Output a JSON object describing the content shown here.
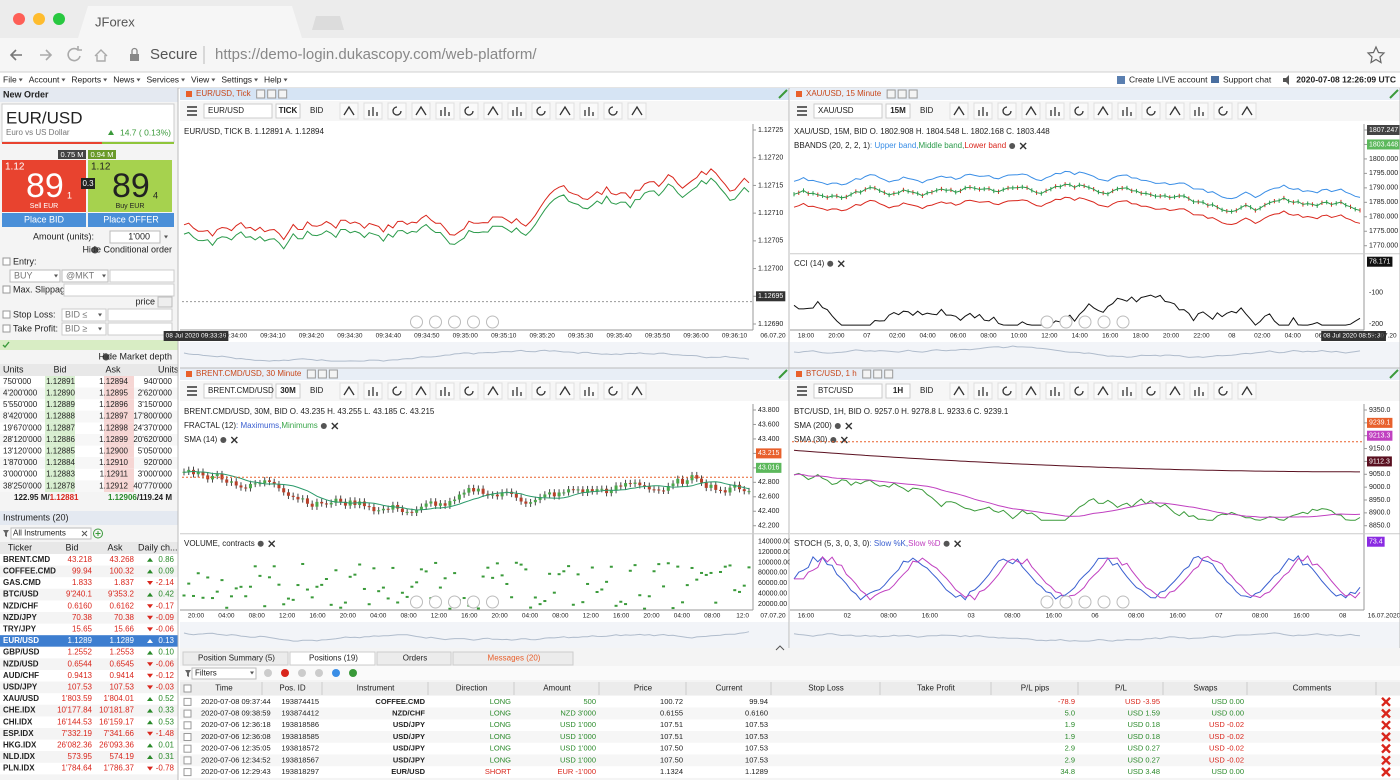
{
  "browser": {
    "tab": "JForex",
    "secure": "Secure",
    "url": "https://demo-login.dukascopy.com/web-platform/"
  },
  "menu": {
    "items": [
      "File",
      "Account",
      "Reports",
      "News",
      "Services",
      "View",
      "Settings",
      "Help"
    ],
    "live": "Create LIVE account",
    "support": "Support chat",
    "clock": "2020-07-08 12:26:09 UTC"
  },
  "order": {
    "title": "New Order",
    "symbol": "EUR/USD",
    "description": "Euro vs US Dollar",
    "change": "14.7 ( 0.13%)",
    "sell": {
      "volume": "0.75 M",
      "big": "1.12",
      "pips": "89",
      "fraction": "1",
      "label": "Sell EUR"
    },
    "buy": {
      "volume": "0.94 M",
      "big": "1.12",
      "pips": "89",
      "fraction": "4",
      "label": "Buy EUR"
    },
    "spread": "0.3",
    "place_bid": "Place BID",
    "place_offer": "Place OFFER",
    "amount_label": "Amount (units):",
    "amount": "1'000",
    "hide_conditional": "Hide Conditional order",
    "entry": "Entry:",
    "side": "BUY",
    "mode": "@MKT",
    "slippage": "Max. Slippage:",
    "price": "price",
    "stop_loss": "Stop Loss:",
    "stop_cond": "BID ≤",
    "take_profit": "Take Profit:",
    "take_cond": "BID ≥",
    "hide_depth": "Hide Market depth"
  },
  "depth": {
    "header": [
      "Units",
      "Bid",
      "Ask",
      "Units"
    ],
    "rows": [
      [
        "750'000",
        "1.12891",
        "1.12894",
        "940'000"
      ],
      [
        "4'200'000",
        "1.12890",
        "1.12895",
        "2'620'000"
      ],
      [
        "5'550'000",
        "1.12889",
        "1.12896",
        "3'150'000"
      ],
      [
        "8'420'000",
        "1.12888",
        "1.12897",
        "17'800'000"
      ],
      [
        "19'670'000",
        "1.12887",
        "1.12898",
        "24'370'000"
      ],
      [
        "28'120'000",
        "1.12886",
        "1.12899",
        "20'620'000"
      ],
      [
        "13'120'000",
        "1.12885",
        "1.12900",
        "5'050'000"
      ],
      [
        "1'870'000",
        "1.12884",
        "1.12910",
        "920'000"
      ],
      [
        "3'000'000",
        "1.12883",
        "1.12911",
        "3'000'000"
      ],
      [
        "38'250'000",
        "1.12878",
        "1.12912",
        "40'770'000"
      ]
    ],
    "footer": [
      "122.95 M/",
      "1.12881",
      "1.12906",
      "/119.24 M"
    ]
  },
  "instruments": {
    "title": "Instruments (20)",
    "filter": "All Instruments",
    "header": [
      "Ticker",
      "Bid",
      "Ask",
      "Daily ch..."
    ],
    "selected": "EUR/USD",
    "rows": [
      [
        "BRENT.CMD",
        "43.218",
        "43.268",
        "0.86"
      ],
      [
        "COFFEE.CMD",
        "99.94",
        "100.32",
        "0.09"
      ],
      [
        "GAS.CMD",
        "1.833",
        "1.837",
        "-2.14"
      ],
      [
        "BTC/USD",
        "9'240.1",
        "9'353.2",
        "0.42"
      ],
      [
        "NZD/CHF",
        "0.6160",
        "0.6162",
        "-0.17"
      ],
      [
        "NZD/JPY",
        "70.38",
        "70.38",
        "-0.09"
      ],
      [
        "TRY/JPY",
        "15.65",
        "15.66",
        "-0.06"
      ],
      [
        "EUR/USD",
        "1.1289",
        "1.1289",
        "0.13"
      ],
      [
        "GBP/USD",
        "1.2552",
        "1.2553",
        "0.10"
      ],
      [
        "NZD/USD",
        "0.6544",
        "0.6545",
        "-0.06"
      ],
      [
        "AUD/CHF",
        "0.9413",
        "0.9414",
        "-0.12"
      ],
      [
        "USD/JPY",
        "107.53",
        "107.53",
        "-0.03"
      ],
      [
        "XAU/USD",
        "1'803.59",
        "1'804.01",
        "0.52"
      ],
      [
        "CHE.IDX",
        "10'177.84",
        "10'181.87",
        "0.33"
      ],
      [
        "CHI.IDX",
        "16'144.53",
        "16'159.17",
        "0.53"
      ],
      [
        "ESP.IDX",
        "7'332.19",
        "7'341.66",
        "-1.48"
      ],
      [
        "HKG.IDX",
        "26'082.36",
        "26'093.36",
        "0.01"
      ],
      [
        "NLD.IDX",
        "573.95",
        "574.19",
        "0.31"
      ],
      [
        "PLN.IDX",
        "1'784.64",
        "1'786.37",
        "-0.78"
      ]
    ]
  },
  "charts": [
    {
      "title": "EUR/USD, Tick",
      "symbol": "EUR/USD",
      "period": "TICK",
      "side": "BID",
      "info": "EUR/USD, TICK   B. 1.12891 A. 1.12894",
      "prices": [
        "1.12725",
        "1.12720",
        "1.12715",
        "1.12710",
        "1.12705",
        "1.12700",
        {
          "text": "1.12695",
          "color": "#333333"
        },
        "1.12690"
      ],
      "times": [
        {
          "text": "08 Jul 2020 09:33:39",
          "color": "#333333"
        },
        "09:34:00",
        "09:34:10",
        "09:34:20",
        "09:34:30",
        "09:34:40",
        "09:34:50",
        "09:35:00",
        "09:35:10",
        "09:35:20",
        "09:35:30",
        "09:35:40",
        "09:35:50",
        "09:36:00",
        "09:36:10",
        "06.07.20"
      ]
    },
    {
      "title": "XAU/USD, 15 Minute",
      "symbol": "XAU/USD",
      "period": "15M",
      "side": "BID",
      "info": "XAU/USD, 15M, BID   O. 1802.908 H. 1804.548 L. 1802.168 C. 1803.448",
      "indicators": [
        {
          "name": "BBANDS (20, 2, 2, 1)",
          "legend": [
            {
              "text": " : Upper band,",
              "color": "#3a8ee6"
            },
            {
              "text": " Middle band,",
              "color": "#2a9a4a"
            },
            {
              "text": " Lower band",
              "color": "#d9261c"
            }
          ]
        }
      ],
      "prices": [
        {
          "text": "1807.247",
          "color": "#444444"
        },
        {
          "text": "1803.448",
          "color": "#5cb85c"
        },
        "1800.000",
        "1795.000",
        "1790.000",
        "1785.000",
        "1780.000",
        "1775.000",
        "1770.000"
      ],
      "lower": {
        "name": "CCI (14)",
        "labels": [
          {
            "text": "78.171",
            "color": "#111111"
          },
          "-100",
          "-200"
        ]
      },
      "times": [
        "18:00",
        "20:00",
        "07",
        "02:00",
        "04:00",
        "06:00",
        "08:00",
        "10:00",
        "12:00",
        "14:00",
        "16:00",
        "18:00",
        "20:00",
        "22:00",
        "08",
        "02:00",
        "04:00",
        "06:00",
        {
          "text": "08 Jul 2020 08:59:30",
          "color": "#333333"
        },
        "07.07.20"
      ]
    },
    {
      "title": "BRENT.CMD/USD, 30 Minute",
      "symbol": "BRENT.CMD/USD",
      "period": "30M",
      "side": "BID",
      "info": "BRENT.CMD/USD, 30M, BID   O. 43.235 H. 43.255 L. 43.185 C. 43.215",
      "indicators": [
        {
          "name": "FRACTAL (12)",
          "legend": [
            {
              "text": " : Maximums,",
              "color": "#3a5fd0"
            },
            {
              "text": " Minimums",
              "color": "#3aa64a"
            }
          ]
        },
        {
          "name": "SMA (14)",
          "legend": []
        }
      ],
      "prices": [
        "43.800",
        "43.600",
        "43.400",
        {
          "text": "43.215",
          "color": "#e8602c"
        },
        {
          "text": "43.016",
          "color": "#5cb85c"
        },
        "42.800",
        "42.600",
        "42.400",
        "42.200"
      ],
      "lower": {
        "name": "VOLUME, contracts",
        "labels": [
          "140000.00",
          "120000.00",
          "100000.00",
          "80000.00",
          "60000.00",
          "40000.00",
          "20000.00"
        ]
      },
      "times": [
        "20:00",
        "04:00",
        "08:00",
        "12:00",
        "16:00",
        "20:00",
        "04:00",
        "08:00",
        "12:00",
        "16:00",
        "20:00",
        "04:00",
        "08:00",
        "12:00",
        "16:00",
        "20:00",
        "04:00",
        "08:00",
        "12:0",
        "07.07.20"
      ]
    },
    {
      "title": "BTC/USD, 1 h",
      "symbol": "BTC/USD",
      "period": "1H",
      "side": "BID",
      "info": "BTC/USD, 1H, BID   O. 9257.0 H. 9278.8 L. 9233.6 C. 9239.1",
      "indicators": [
        {
          "name": "SMA (200)",
          "legend": []
        },
        {
          "name": "SMA (30)",
          "legend": []
        }
      ],
      "prices": [
        "9350.0",
        {
          "text": "9239.1",
          "color": "#e8602c"
        },
        {
          "text": "9213.3",
          "color": "#c040c0"
        },
        "9150.0",
        {
          "text": "9112.3",
          "color": "#5a1020"
        },
        "9050.0",
        "9000.0",
        "8950.0",
        "8900.0",
        "8850.0"
      ],
      "lower": {
        "name": "STOCH (5, 3, 0, 3, 0)",
        "legend": [
          {
            "text": " : Slow %K,",
            "color": "#3a5fd0"
          },
          {
            "text": " Slow %D",
            "color": "#c040c0"
          }
        ],
        "labels": [
          {
            "text": "73.4",
            "color": "#8a2be2"
          }
        ]
      },
      "times": [
        "16:00",
        "02",
        "08:00",
        "16:00",
        "03",
        "08:00",
        "16:00",
        "06",
        "08:00",
        "16:00",
        "07",
        "08:00",
        "16:00",
        "08",
        "16.07.2020"
      ]
    }
  ],
  "positions": {
    "tabs": [
      "Position Summary (5)",
      "Positions (19)",
      "Orders",
      "Messages (20)"
    ],
    "filters": "Filters",
    "columns": [
      "Time",
      "Pos. ID",
      "Instrument",
      "Direction",
      "Amount",
      "Price",
      "Current",
      "Stop Loss",
      "Take Profit",
      "P/L pips",
      "P/L",
      "Swaps",
      "Comments"
    ],
    "rows": [
      [
        "2020-07-08 09:37:44",
        "193874415",
        "COFFEE.CMD",
        "LONG",
        "500",
        "100.72",
        "99.94",
        "-78.9",
        "USD -3.95",
        "USD 0.00"
      ],
      [
        "2020-07-08 09:38:59",
        "193874412",
        "NZD/CHF",
        "LONG",
        "NZD 3'000",
        "0.6155",
        "0.6160",
        "5.0",
        "USD 1.59",
        "USD 0.00"
      ],
      [
        "2020-07-06 12:36:18",
        "193818586",
        "USD/JPY",
        "LONG",
        "USD 1'000",
        "107.51",
        "107.53",
        "1.9",
        "USD 0.18",
        "USD -0.02"
      ],
      [
        "2020-07-06 12:36:08",
        "193818585",
        "USD/JPY",
        "LONG",
        "USD 1'000",
        "107.51",
        "107.53",
        "1.9",
        "USD 0.18",
        "USD -0.02"
      ],
      [
        "2020-07-06 12:35:05",
        "193818572",
        "USD/JPY",
        "LONG",
        "USD 1'000",
        "107.50",
        "107.53",
        "2.9",
        "USD 0.27",
        "USD -0.02"
      ],
      [
        "2020-07-06 12:34:52",
        "193818567",
        "USD/JPY",
        "LONG",
        "USD 1'000",
        "107.50",
        "107.53",
        "2.9",
        "USD 0.27",
        "USD -0.02"
      ],
      [
        "2020-07-06 12:29:43",
        "193818297",
        "EUR/USD",
        "SHORT",
        "EUR -1'000",
        "1.1324",
        "1.1289",
        "34.8",
        "USD 3.48",
        "USD 0.00"
      ]
    ]
  }
}
